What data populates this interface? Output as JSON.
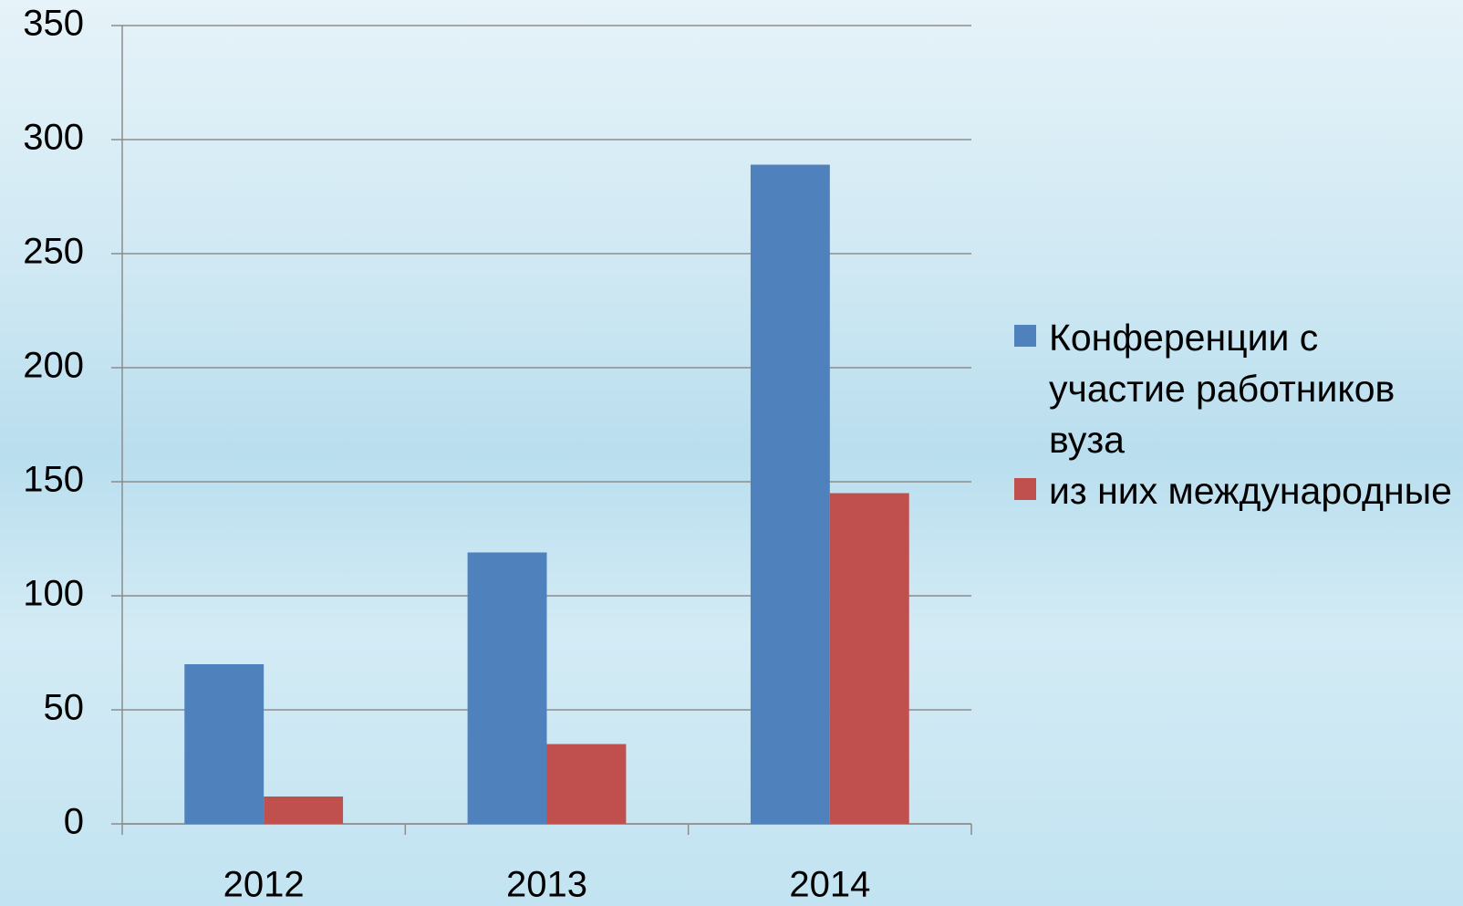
{
  "chart_data": {
    "type": "bar",
    "categories": [
      "2012",
      "2013",
      "2014"
    ],
    "series": [
      {
        "name": "Конференции с участие работников вуза",
        "color": "#4f81bd",
        "values": [
          70,
          119,
          289
        ]
      },
      {
        "name": "из них международные",
        "color": "#c0504d",
        "values": [
          12,
          35,
          145
        ]
      }
    ],
    "ylim": [
      0,
      350
    ],
    "yticks": [
      0,
      50,
      100,
      150,
      200,
      250,
      300,
      350
    ],
    "grid": true,
    "legend": "right"
  }
}
